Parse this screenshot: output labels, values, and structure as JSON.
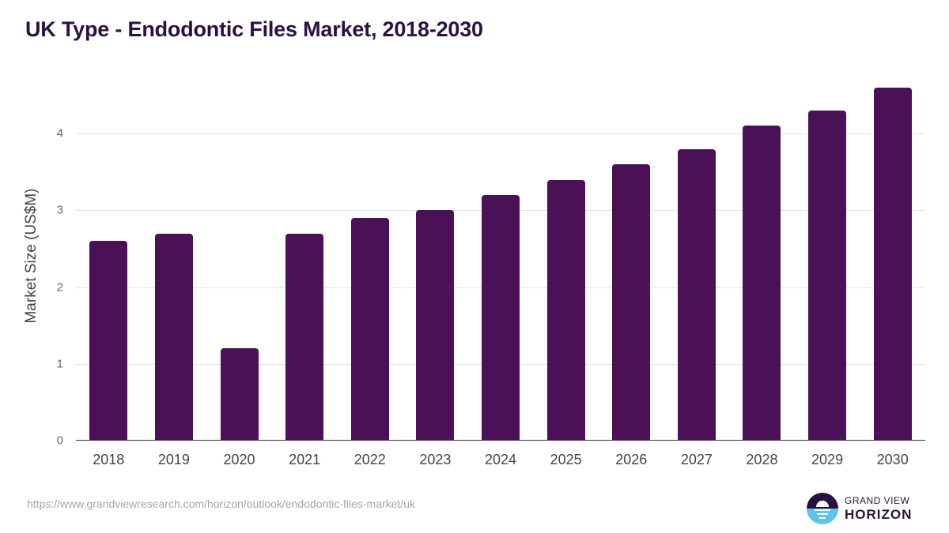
{
  "title": "UK Type - Endodontic Files Market, 2018-2030",
  "source_url": "https://www.grandviewresearch.com/horizon/outlook/endodontic-files-market/uk",
  "logo": {
    "line1": "GRAND VIEW",
    "line2": "HORIZON"
  },
  "colors": {
    "bar": "#4b1157",
    "title": "#2a1240",
    "logo_dark": "#2a1240",
    "logo_light": "#5cc3ec"
  },
  "chart_data": {
    "type": "bar",
    "title": "UK Type - Endodontic Files Market, 2018-2030",
    "xlabel": "",
    "ylabel": "Market Size (US$M)",
    "categories": [
      "2018",
      "2019",
      "2020",
      "2021",
      "2022",
      "2023",
      "2024",
      "2025",
      "2026",
      "2027",
      "2028",
      "2029",
      "2030"
    ],
    "values": [
      2.6,
      2.7,
      1.2,
      2.7,
      2.9,
      3.0,
      3.2,
      3.4,
      3.6,
      3.8,
      4.1,
      4.3,
      4.6
    ],
    "yticks": [
      "0",
      "1",
      "2",
      "3",
      "4"
    ],
    "ylim": [
      0,
      5
    ],
    "grid": true,
    "legend": null
  }
}
